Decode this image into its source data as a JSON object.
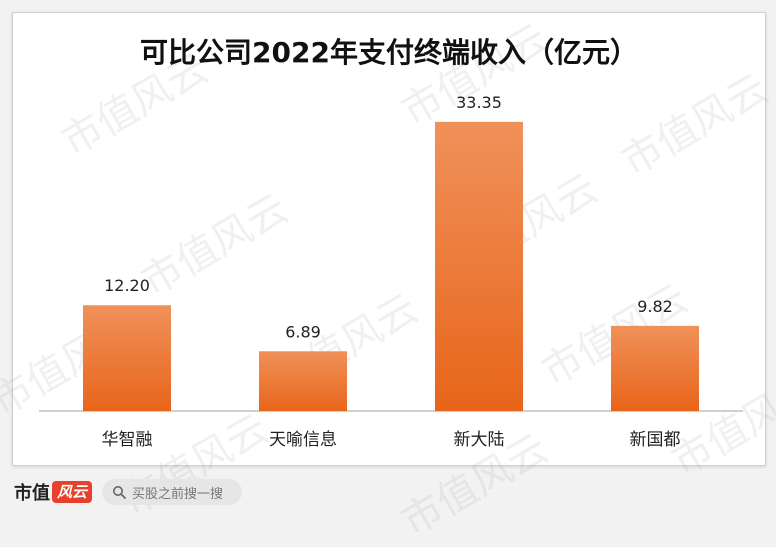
{
  "chart_data": {
    "type": "bar",
    "title": "可比公司2022年支付终端收入（亿元）",
    "categories": [
      "华智融",
      "天喻信息",
      "新大陆",
      "新国都"
    ],
    "values": [
      12.2,
      6.89,
      33.35,
      9.82
    ],
    "data_labels": [
      "12.20",
      "6.89",
      "33.35",
      "9.82"
    ],
    "ylim": [
      0,
      40
    ],
    "grid": false,
    "colors": {
      "bar_top": "#f0915a",
      "bar_bottom": "#e8651a",
      "axis": "#bfbfbf"
    }
  },
  "watermark": "市值风云",
  "footer": {
    "brand_text": "市值",
    "brand_badge": "风云",
    "search_icon": "search-icon",
    "search_placeholder": "买股之前搜一搜"
  }
}
